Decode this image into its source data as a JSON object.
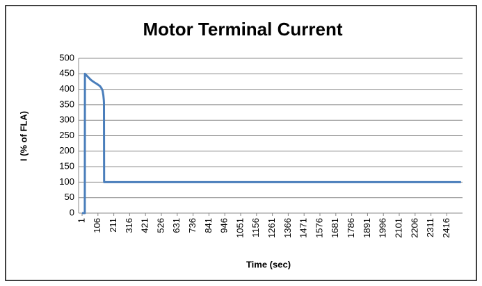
{
  "chart_data": {
    "type": "line",
    "title": "Motor Terminal Current",
    "xlabel": "Time (sec)",
    "ylabel": "I (% of FLA)",
    "x": [
      1,
      19,
      20,
      40,
      60,
      80,
      100,
      120,
      130,
      137,
      142,
      145,
      146,
      147,
      2510
    ],
    "series": [
      {
        "name": "I",
        "color": "#4a7ebb",
        "values": [
          0,
          0,
          450,
          440,
          430,
          423,
          417,
          410,
          403,
          395,
          380,
          365,
          355,
          100,
          100
        ]
      }
    ],
    "xlim": [
      1,
      2520
    ],
    "xticks": [
      1,
      106,
      211,
      316,
      421,
      526,
      631,
      736,
      841,
      946,
      1051,
      1156,
      1261,
      1366,
      1471,
      1576,
      1681,
      1786,
      1891,
      1996,
      2101,
      2206,
      2311,
      2416
    ],
    "ylim": [
      0,
      500
    ],
    "yticks": [
      0,
      50,
      100,
      150,
      200,
      250,
      300,
      350,
      400,
      450,
      500
    ],
    "grid": true
  }
}
